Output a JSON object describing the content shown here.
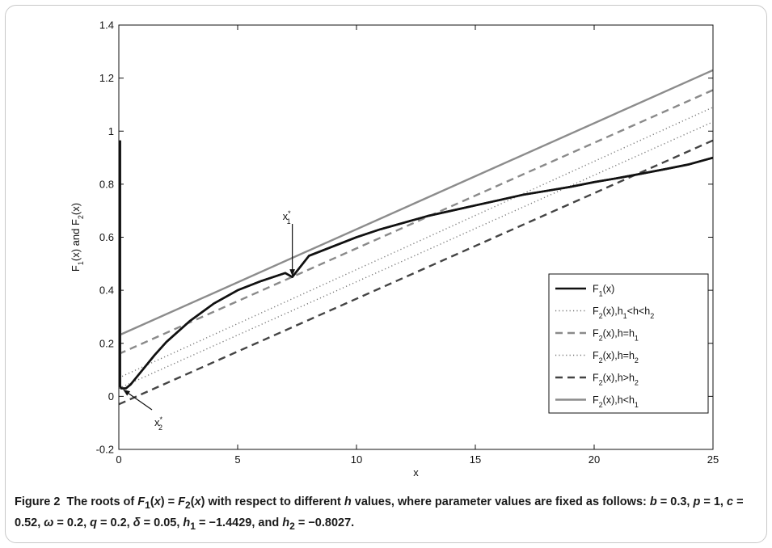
{
  "chart_data": {
    "type": "line",
    "xlabel": "x",
    "ylabel_html": "F<tspan baseline-shift='sub' font-size='9'>1</tspan>(x) and F<tspan baseline-shift='sub' font-size='9'>2</tspan>(x)",
    "ylabel": "F1(x) and F2(x)",
    "xlim": [
      0,
      25
    ],
    "ylim": [
      -0.2,
      1.4
    ],
    "x_ticks": [
      0,
      5,
      10,
      15,
      20,
      25
    ],
    "x_tick_labels": [
      "0",
      "5",
      "10",
      "15",
      "20",
      "25"
    ],
    "y_ticks": [
      -0.2,
      0,
      0.2,
      0.4,
      0.6,
      0.8,
      1,
      1.2,
      1.4
    ],
    "y_tick_labels": [
      "-0.2",
      "0",
      "0.2",
      "0.4",
      "0.6",
      "0.8",
      "1",
      "1.2",
      "1.4"
    ],
    "legend_position": "lower-right",
    "series": [
      {
        "name": "F1(x)",
        "color": "#111111",
        "style": "solid",
        "width": 2.6,
        "x": [
          0.05,
          0.05,
          0.1,
          0.3,
          0.5,
          1,
          1.5,
          2,
          3,
          4,
          5,
          6,
          7,
          7.3,
          8,
          9,
          10,
          11,
          12,
          13,
          14,
          15,
          16,
          17,
          18,
          19,
          20,
          21,
          22,
          23,
          24,
          25
        ],
        "y": [
          0.965,
          0.04,
          0.03,
          0.03,
          0.045,
          0.1,
          0.155,
          0.205,
          0.285,
          0.35,
          0.4,
          0.435,
          0.465,
          0.45,
          0.53,
          0.565,
          0.6,
          0.63,
          0.655,
          0.68,
          0.7,
          0.72,
          0.74,
          0.76,
          0.775,
          0.79,
          0.808,
          0.823,
          0.84,
          0.857,
          0.875,
          0.9
        ]
      },
      {
        "name": "F2(x),h1<h<h2",
        "color": "#777777",
        "style": "dotted",
        "width": 1.4,
        "x": [
          0,
          25
        ],
        "y": [
          0.07,
          1.09
        ]
      },
      {
        "name": "F2(x),h=h1",
        "color": "#8a8a8a",
        "style": "dashed",
        "width": 2.4,
        "x": [
          0,
          25
        ],
        "y": [
          0.16,
          1.155
        ]
      },
      {
        "name": "F2(x),h=h2",
        "color": "#777777",
        "style": "dotted",
        "width": 1.4,
        "x": [
          0,
          25
        ],
        "y": [
          0.03,
          1.035
        ]
      },
      {
        "name": "F2(x),h>h2",
        "color": "#444444",
        "style": "dashed",
        "width": 2.4,
        "x": [
          0,
          25
        ],
        "y": [
          -0.03,
          0.965
        ]
      },
      {
        "name": "F2(x),h<h1",
        "color": "#8c8c8c",
        "style": "solid",
        "width": 2.4,
        "x": [
          0,
          25
        ],
        "y": [
          0.23,
          1.23
        ]
      }
    ],
    "legend_html": [
      "F<tspan baseline-shift='sub' font-size='9'>1</tspan>(x)",
      "F<tspan baseline-shift='sub' font-size='9'>2</tspan>(x),h<tspan baseline-shift='sub' font-size='9'>1</tspan>&lt;h&lt;h<tspan baseline-shift='sub' font-size='9'>2</tspan>",
      "F<tspan baseline-shift='sub' font-size='9'>2</tspan>(x),h=h<tspan baseline-shift='sub' font-size='9'>1</tspan>",
      "F<tspan baseline-shift='sub' font-size='9'>2</tspan>(x),h=h<tspan baseline-shift='sub' font-size='9'>2</tspan>",
      "F<tspan baseline-shift='sub' font-size='9'>2</tspan>(x),h&gt;h<tspan baseline-shift='sub' font-size='9'>2</tspan>",
      "F<tspan baseline-shift='sub' font-size='9'>2</tspan>(x),h&lt;h<tspan baseline-shift='sub' font-size='9'>1</tspan>"
    ],
    "annotations": [
      {
        "label": "x1*",
        "point": [
          7.3,
          0.45
        ]
      },
      {
        "label": "x2*",
        "point": [
          0.1,
          0.03
        ]
      }
    ]
  },
  "caption": {
    "label": "Figure 2",
    "text_html": "The roots of <i>F</i><sub>1</sub>(<i>x</i>) = <i>F</i><sub>2</sub>(<i>x</i>) with respect to different <i>h</i> values, where parameter values are fixed as follows: <i>b</i> = 0.3, <i>p</i> = 1, <i>c</i> = 0.52, <i>ω</i> = 0.2, <i>q</i> = 0.2, <i>δ</i> = 0.05, <i>h</i><sub>1</sub> = −1.4429, and <i>h</i><sub>2</sub> = −0.8027."
  }
}
